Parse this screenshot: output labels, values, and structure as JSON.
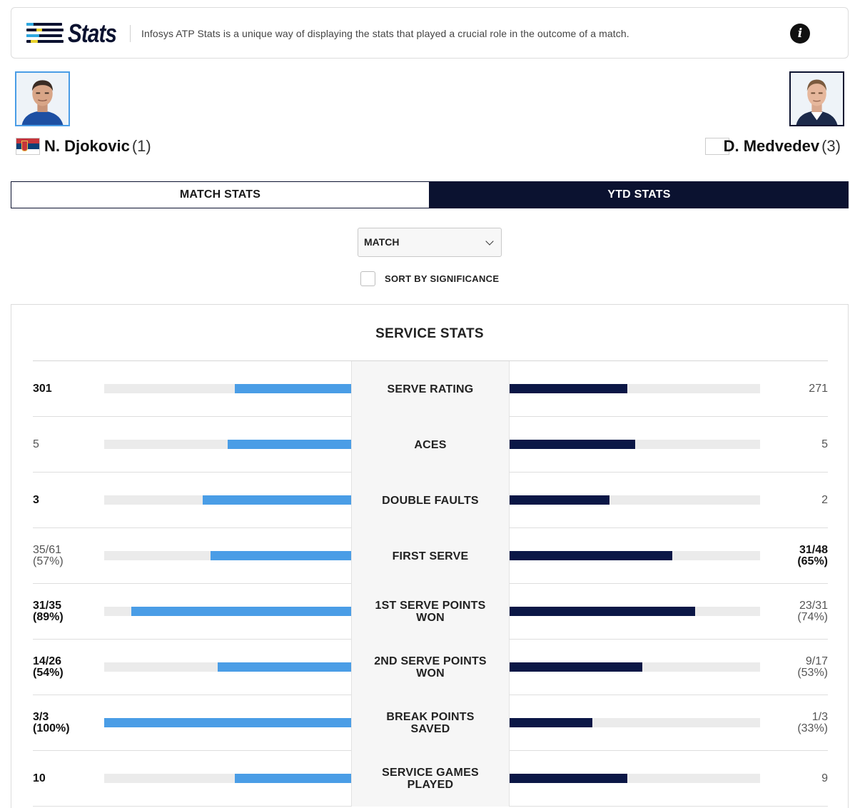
{
  "banner": {
    "logo_text": "Stats",
    "description": "Infosys ATP Stats is a unique way of displaying the stats that played a crucial role in the outcome of a match."
  },
  "players": [
    {
      "name": "N. Djokovic",
      "seed": "(1)",
      "flag": "serbia-flag"
    },
    {
      "name": "D. Medvedev",
      "seed": "(3)",
      "flag": "blank-flag"
    }
  ],
  "tabs": [
    {
      "label": "MATCH STATS",
      "active": false
    },
    {
      "label": "YTD STATS",
      "active": true
    }
  ],
  "filter": {
    "selected": "MATCH"
  },
  "sort": {
    "label": "SORT BY SIGNIFICANCE",
    "checked": false
  },
  "colors": {
    "player1": "#4a9de6",
    "player2": "#0b1746",
    "navy": "#0b1230"
  },
  "section": {
    "title": "SERVICE STATS",
    "rows": [
      {
        "label": "SERVE RATING",
        "p1": "301",
        "p1_pct": "",
        "p2": "271",
        "p2_pct": "",
        "p1_fill": 0.47,
        "p2_fill": 0.47,
        "winner": 1
      },
      {
        "label": "ACES",
        "p1": "5",
        "p1_pct": "",
        "p2": "5",
        "p2_pct": "",
        "p1_fill": 0.5,
        "p2_fill": 0.5,
        "winner": 0
      },
      {
        "label": "DOUBLE FAULTS",
        "p1": "3",
        "p1_pct": "",
        "p2": "2",
        "p2_pct": "",
        "p1_fill": 0.6,
        "p2_fill": 0.4,
        "winner": 1
      },
      {
        "label": "FIRST SERVE",
        "p1": "35/61",
        "p1_pct": "(57%)",
        "p2": "31/48",
        "p2_pct": "(65%)",
        "p1_fill": 0.57,
        "p2_fill": 0.65,
        "winner": 2
      },
      {
        "label": "1ST SERVE POINTS WON",
        "p1": "31/35",
        "p1_pct": "(89%)",
        "p2": "23/31",
        "p2_pct": "(74%)",
        "p1_fill": 0.89,
        "p2_fill": 0.74,
        "winner": 1
      },
      {
        "label": "2ND SERVE POINTS WON",
        "p1": "14/26",
        "p1_pct": "(54%)",
        "p2": "9/17",
        "p2_pct": "(53%)",
        "p1_fill": 0.54,
        "p2_fill": 0.53,
        "winner": 1
      },
      {
        "label": "BREAK POINTS SAVED",
        "p1": "3/3",
        "p1_pct": "(100%)",
        "p2": "1/3",
        "p2_pct": "(33%)",
        "p1_fill": 1.0,
        "p2_fill": 0.33,
        "winner": 1
      },
      {
        "label": "SERVICE GAMES PLAYED",
        "p1": "10",
        "p1_pct": "",
        "p2": "9",
        "p2_pct": "",
        "p1_fill": 0.47,
        "p2_fill": 0.47,
        "winner": 1
      }
    ]
  }
}
